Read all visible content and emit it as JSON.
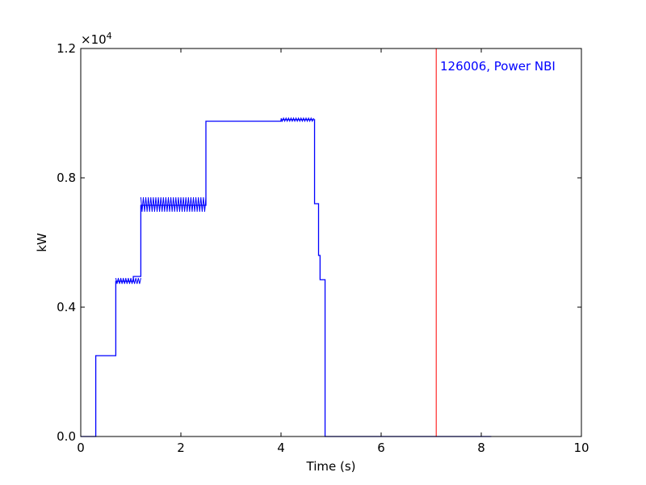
{
  "chart_data": {
    "type": "line",
    "title": "",
    "xlabel": "Time (s)",
    "ylabel": "kW",
    "xlim": [
      0,
      10
    ],
    "ylim": [
      0,
      12000
    ],
    "x_ticks": [
      0,
      2,
      4,
      6,
      8,
      10
    ],
    "x_tick_labels": [
      "0",
      "2",
      "4",
      "6",
      "8",
      "10"
    ],
    "y_ticks": [
      0,
      4000,
      8000,
      12000
    ],
    "y_tick_labels": [
      "0.0",
      "0.4",
      "0.8",
      "1.2"
    ],
    "y_scale_exponent_label": "×10",
    "y_scale_exponent_power": "4",
    "grid": false,
    "line_color": "#0000ff",
    "marker_color": "#ff0000",
    "series": [
      {
        "x": [
          0.0,
          0.3,
          0.3,
          0.7,
          0.7,
          1.05,
          1.05,
          1.2,
          1.2,
          2.5,
          2.5,
          4.0,
          4.0,
          4.67,
          4.67,
          4.75,
          4.75,
          4.78,
          4.78,
          4.88,
          4.88,
          8.2
        ],
        "y": [
          0,
          0,
          2500,
          2500,
          4800,
          4800,
          4950,
          4950,
          7150,
          7150,
          9750,
          9750,
          9800,
          9800,
          7200,
          7200,
          5600,
          5600,
          4850,
          4850,
          0,
          0
        ]
      }
    ],
    "ripple_segments": [
      {
        "x_start": 0.7,
        "x_end": 1.2,
        "y_low": 4720,
        "y_high": 4900,
        "period": 0.05
      },
      {
        "x_start": 1.2,
        "x_end": 2.5,
        "y_low": 6950,
        "y_high": 7400,
        "period": 0.05
      },
      {
        "x_start": 4.0,
        "x_end": 4.67,
        "y_low": 9750,
        "y_high": 9850,
        "period": 0.05
      }
    ],
    "vline": {
      "x": 7.1
    },
    "annotation": {
      "text": "126006, Power NBI",
      "color": "#0000ff"
    }
  }
}
